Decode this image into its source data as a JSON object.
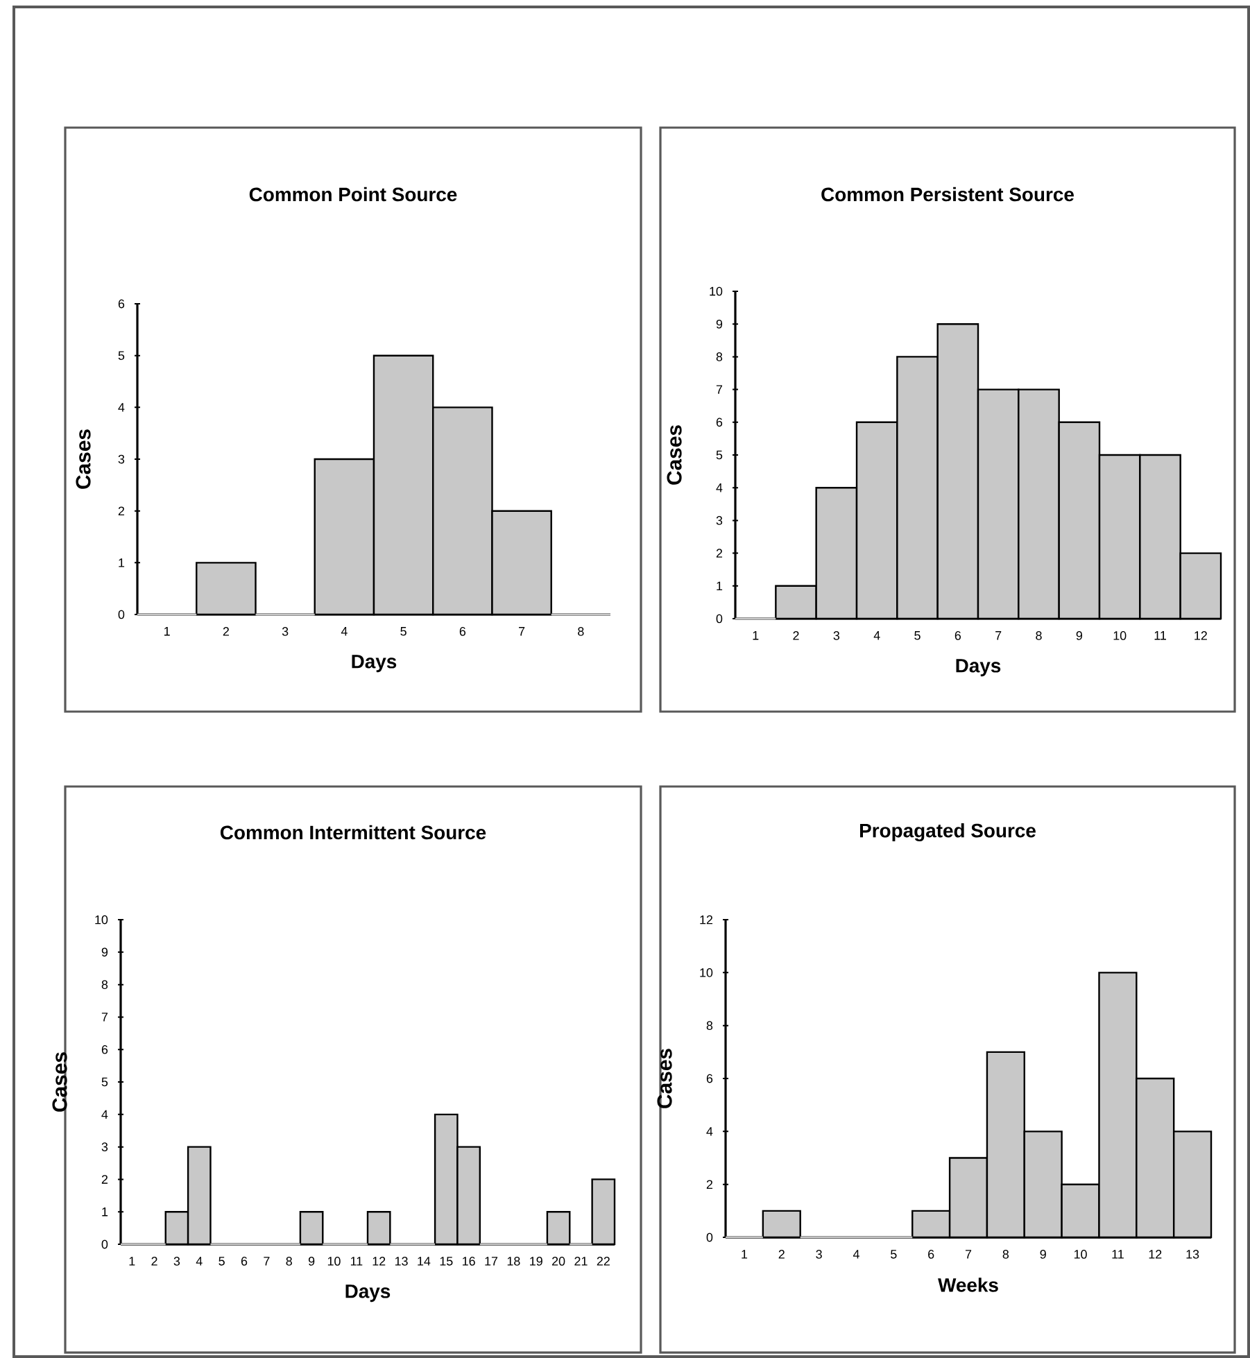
{
  "chart_data": [
    {
      "type": "bar",
      "title": "Common Point Source",
      "xlabel": "Days",
      "ylabel": "Cases",
      "categories": [
        "1",
        "2",
        "3",
        "4",
        "5",
        "6",
        "7",
        "8"
      ],
      "values": [
        0,
        1,
        0,
        3,
        5,
        4,
        2,
        0
      ],
      "color": "#c8c8c8",
      "ylim": [
        0,
        6
      ],
      "yticks": [
        0,
        1,
        2,
        3,
        4,
        5,
        6
      ]
    },
    {
      "type": "bar",
      "title": "Common Persistent Source",
      "xlabel": "Days",
      "ylabel": "Cases",
      "categories": [
        "1",
        "2",
        "3",
        "4",
        "5",
        "6",
        "7",
        "8",
        "9",
        "10",
        "11",
        "12"
      ],
      "values": [
        0,
        1,
        4,
        6,
        8,
        9,
        7,
        7,
        6,
        5,
        5,
        2
      ],
      "color": "#c8c8c8",
      "ylim": [
        0,
        10
      ],
      "yticks": [
        0,
        1,
        2,
        3,
        4,
        5,
        6,
        7,
        8,
        9,
        10
      ]
    },
    {
      "type": "bar",
      "title": "Common Intermittent Source",
      "xlabel": "Days",
      "ylabel": "Cases",
      "categories": [
        "1",
        "2",
        "3",
        "4",
        "5",
        "6",
        "7",
        "8",
        "9",
        "10",
        "11",
        "12",
        "13",
        "14",
        "15",
        "16",
        "17",
        "18",
        "19",
        "20",
        "21",
        "22"
      ],
      "values": [
        0,
        0,
        1,
        3,
        0,
        0,
        0,
        0,
        1,
        0,
        0,
        1,
        0,
        0,
        4,
        3,
        0,
        0,
        0,
        1,
        0,
        2
      ],
      "color": "#c8c8c8",
      "ylim": [
        0,
        10
      ],
      "yticks": [
        0,
        1,
        2,
        3,
        4,
        5,
        6,
        7,
        8,
        9,
        10
      ]
    },
    {
      "type": "bar",
      "title": "Propagated Source",
      "xlabel": "Weeks",
      "ylabel": "Cases",
      "categories": [
        "1",
        "2",
        "3",
        "4",
        "5",
        "6",
        "7",
        "8",
        "9",
        "10",
        "11",
        "12",
        "13"
      ],
      "values": [
        0,
        1,
        0,
        0,
        0,
        1,
        3,
        7,
        4,
        2,
        10,
        6,
        4
      ],
      "color": "#c8c8c8",
      "ylim": [
        0,
        12
      ],
      "yticks": [
        0,
        2,
        4,
        6,
        8,
        10,
        12
      ]
    }
  ]
}
